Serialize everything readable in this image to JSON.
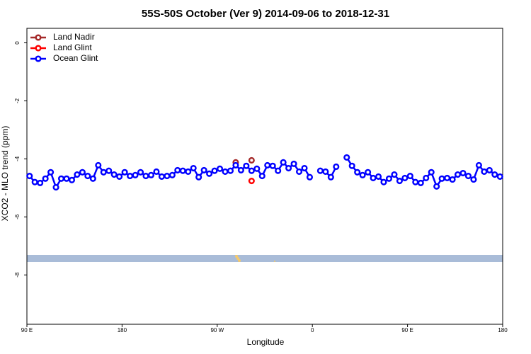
{
  "chart_data": {
    "type": "line",
    "title": "55S-50S October (Ver 9)   2014-09-06 to 2018-12-31",
    "x_label": "Longitude",
    "y_label": "XCO2 - MLO trend (ppm)",
    "x": [
      92.5,
      97.5,
      102.5,
      107.5,
      112.5,
      117.5,
      122.5,
      127.5,
      132.5,
      137.5,
      142.5,
      147.5,
      152.5,
      157.5,
      162.5,
      167.5,
      172.5,
      177.5,
      182.5,
      187.5,
      192.5,
      197.5,
      202.5,
      207.5,
      212.5,
      217.5,
      222.5,
      227.5,
      232.5,
      237.5,
      242.5,
      247.5,
      252.5,
      257.5,
      262.5,
      267.5,
      272.5,
      277.5,
      282.5,
      287.5,
      292.5,
      297.5,
      302.5,
      307.5,
      312.5,
      317.5,
      322.5,
      327.5,
      332.5,
      337.5,
      342.5,
      347.5,
      352.5,
      357.5,
      362.5,
      367.5,
      372.5,
      377.5,
      382.5,
      387.5,
      392.5,
      397.5,
      402.5,
      407.5,
      412.5,
      417.5,
      422.5,
      427.5,
      432.5,
      437.5,
      442.5,
      447.5,
      452.5,
      457.5,
      462.5,
      467.5,
      472.5,
      477.5,
      482.5,
      487.5,
      492.5,
      497.5,
      502.5,
      507.5,
      512.5,
      517.5,
      522.5,
      527.5,
      532.5,
      537.5
    ],
    "series": [
      {
        "name": "Land Nadir",
        "color": "#a52a2a",
        "values": [
          null,
          null,
          null,
          null,
          null,
          null,
          null,
          null,
          null,
          null,
          null,
          null,
          null,
          null,
          null,
          null,
          null,
          null,
          null,
          null,
          null,
          null,
          null,
          null,
          null,
          null,
          null,
          null,
          null,
          null,
          null,
          null,
          null,
          null,
          null,
          null,
          null,
          null,
          null,
          -4.12,
          null,
          null,
          -4.05,
          null,
          null,
          null,
          null,
          null,
          null,
          null,
          null,
          null,
          null,
          null,
          null,
          null,
          null,
          null,
          null,
          null,
          null,
          null,
          null,
          null,
          null,
          null,
          null,
          null,
          null,
          null,
          null,
          null,
          null,
          null,
          null,
          null,
          null,
          null,
          null,
          null,
          null,
          null,
          null,
          null,
          null,
          null,
          null,
          null,
          null,
          null
        ]
      },
      {
        "name": "Land Glint",
        "color": "#ff0000",
        "values": [
          null,
          null,
          null,
          null,
          null,
          null,
          null,
          null,
          null,
          null,
          null,
          null,
          null,
          null,
          null,
          null,
          null,
          null,
          null,
          null,
          null,
          null,
          null,
          null,
          null,
          null,
          null,
          null,
          null,
          null,
          null,
          null,
          null,
          null,
          null,
          null,
          null,
          null,
          null,
          null,
          null,
          null,
          -4.76,
          null,
          null,
          null,
          null,
          null,
          null,
          null,
          null,
          null,
          null,
          null,
          null,
          null,
          null,
          null,
          null,
          null,
          null,
          null,
          null,
          null,
          null,
          null,
          null,
          null,
          null,
          null,
          null,
          null,
          null,
          null,
          null,
          null,
          null,
          null,
          null,
          null,
          null,
          null,
          null,
          null,
          null,
          null,
          null,
          null,
          null,
          null
        ]
      },
      {
        "name": "Ocean Glint",
        "color": "#0000ff",
        "values": [
          -4.59,
          -4.8,
          -4.83,
          -4.68,
          -4.46,
          -4.98,
          -4.68,
          -4.68,
          -4.73,
          -4.54,
          -4.46,
          -4.59,
          -4.68,
          -4.22,
          -4.46,
          -4.41,
          -4.54,
          -4.61,
          -4.46,
          -4.59,
          -4.56,
          -4.46,
          -4.59,
          -4.56,
          -4.44,
          -4.61,
          -4.59,
          -4.56,
          -4.39,
          -4.41,
          -4.44,
          -4.32,
          -4.63,
          -4.39,
          -4.51,
          -4.41,
          -4.34,
          -4.44,
          -4.41,
          -4.22,
          -4.39,
          -4.24,
          -4.41,
          -4.34,
          -4.59,
          -4.22,
          -4.24,
          -4.41,
          -4.12,
          -4.32,
          -4.17,
          -4.44,
          -4.32,
          -4.63,
          null,
          -4.41,
          -4.44,
          -4.63,
          -4.27,
          null,
          -3.95,
          -4.24,
          -4.46,
          -4.56,
          -4.46,
          -4.66,
          -4.61,
          -4.8,
          -4.68,
          -4.54,
          -4.76,
          -4.66,
          -4.59,
          -4.8,
          -4.83,
          -4.66,
          -4.46,
          -4.95,
          -4.68,
          -4.66,
          -4.71,
          -4.54,
          -4.49,
          -4.59,
          -4.71,
          -4.22,
          -4.44,
          -4.39,
          -4.54,
          -4.61
        ]
      }
    ],
    "xlim": [
      90,
      540
    ],
    "xticks": [
      {
        "value": 90,
        "label": "90 E"
      },
      180,
      {
        "value": 270,
        "label": "90 W"
      },
      {
        "value": 360,
        "label": "0"
      },
      {
        "value": 450,
        "label": "90 E"
      },
      {
        "value": 540,
        "label": "180"
      }
    ],
    "ylim": [
      -9.7,
      0.5
    ],
    "yticks": [
      0,
      -2,
      -4,
      -6,
      -8
    ],
    "legend": "top-left"
  }
}
